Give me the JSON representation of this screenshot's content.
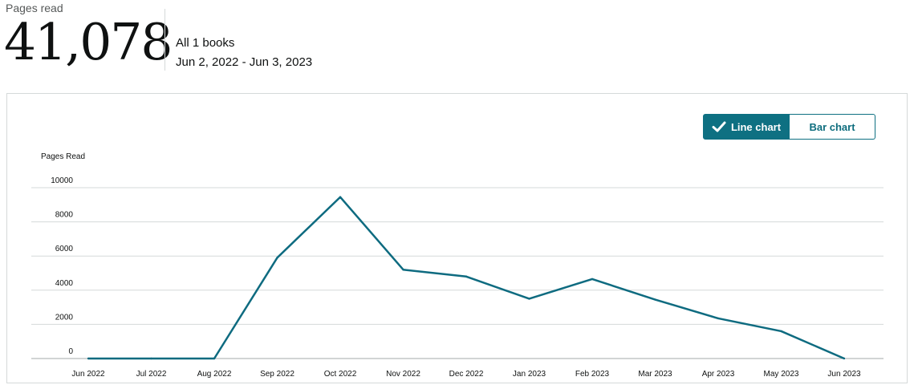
{
  "summary": {
    "label": "Pages read",
    "total": "41,078",
    "books": "All 1 books",
    "date_range": "Jun 2, 2022 - Jun 3, 2023"
  },
  "toggle": {
    "line_label": "Line chart",
    "bar_label": "Bar chart",
    "selected": "line"
  },
  "colors": {
    "line": "#0e6b80",
    "accent": "#0e7082",
    "grid": "#d5d9d9"
  },
  "icons": {
    "check": "check-icon"
  },
  "chart_data": {
    "type": "line",
    "ylabel": "Pages Read",
    "xlabel": "",
    "categories": [
      "Jun 2022",
      "Jul 2022",
      "Aug 2022",
      "Sep 2022",
      "Oct 2022",
      "Nov 2022",
      "Dec 2022",
      "Jan 2023",
      "Feb 2023",
      "Mar 2023",
      "Apr 2023",
      "May 2023",
      "Jun 2023"
    ],
    "series": [
      {
        "values": [
          0,
          0,
          0,
          5900,
          9450,
          5200,
          4800,
          3500,
          4650,
          3450,
          2350,
          1600,
          0
        ]
      }
    ],
    "yticks": [
      0,
      2000,
      4000,
      6000,
      8000,
      10000
    ],
    "ylim": [
      0,
      10000
    ],
    "grid": true,
    "legend": false
  }
}
